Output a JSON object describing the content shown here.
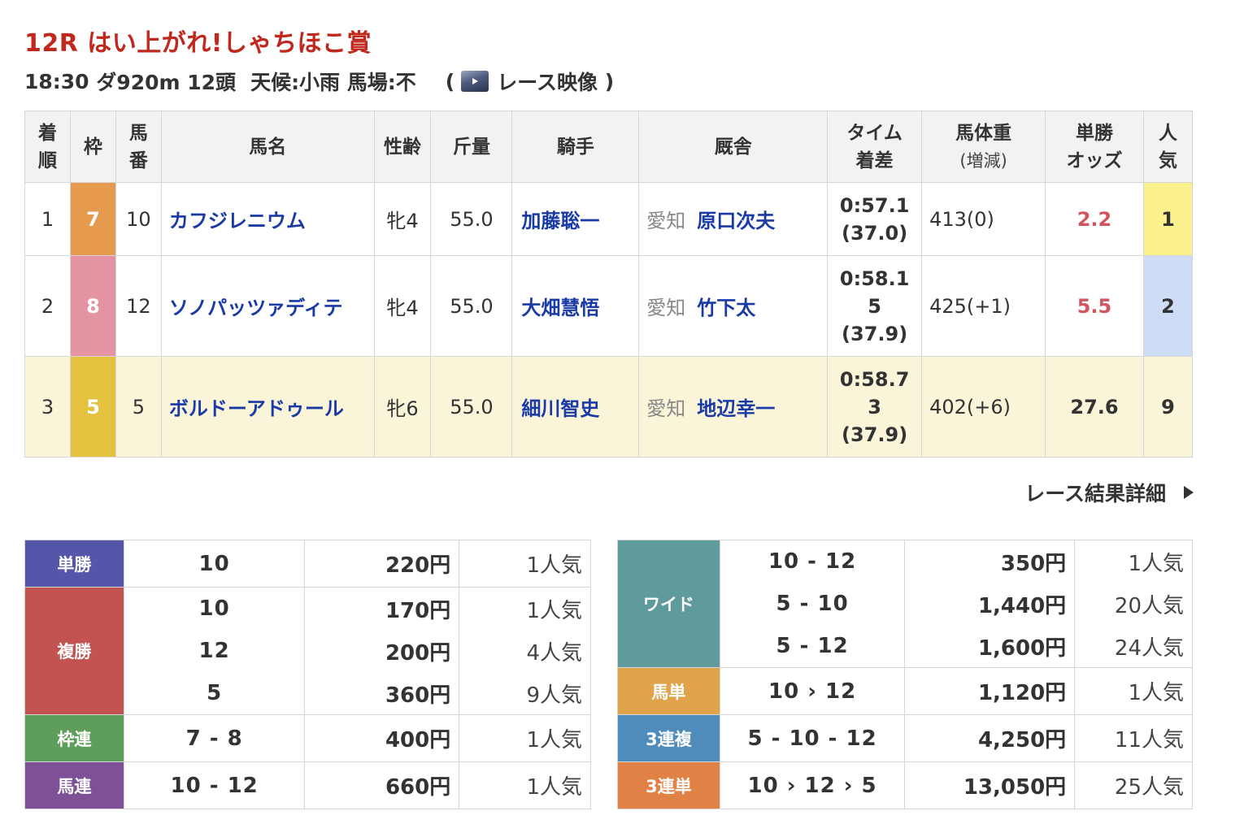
{
  "race": {
    "title": "12R はい上がれ!しゃちほこ賞",
    "time": "18:30",
    "course": "ダ920m",
    "runners": "12頭",
    "weather": "天候:小雨",
    "track": "馬場:不",
    "video_open": "(",
    "video_label": "レース映像",
    "video_close": ")"
  },
  "results_table": {
    "headers": {
      "rank": [
        "着",
        "順"
      ],
      "waku": "枠",
      "umaban": [
        "馬",
        "番"
      ],
      "name": "馬名",
      "sexage": "性齢",
      "weight_carried": "斤量",
      "jockey": "騎手",
      "trainer": "厩舎",
      "time": [
        "タイム",
        "着差"
      ],
      "body_weight": [
        "馬体重",
        "(増減)"
      ],
      "odds": [
        "単勝",
        "オッズ"
      ],
      "popularity": [
        "人",
        "気"
      ]
    },
    "rows": [
      {
        "rank": "1",
        "waku": "7",
        "umaban": "10",
        "name": "カフジレニウム",
        "sexage": "牝4",
        "weight_carried": "55.0",
        "jockey": "加藤聡一",
        "trainer_loc": "愛知",
        "trainer": "原口次夫",
        "time": [
          "0:57.1",
          "(37.0)"
        ],
        "body_weight": "413(0)",
        "odds": "2.2",
        "popularity": "1"
      },
      {
        "rank": "2",
        "waku": "8",
        "umaban": "12",
        "name": "ソノパッツァディテ",
        "sexage": "牝4",
        "weight_carried": "55.0",
        "jockey": "大畑慧悟",
        "trainer_loc": "愛知",
        "trainer": "竹下太",
        "time": [
          "0:58.1",
          "5",
          "(37.9)"
        ],
        "body_weight": "425(+1)",
        "odds": "5.5",
        "popularity": "2"
      },
      {
        "rank": "3",
        "waku": "5",
        "umaban": "5",
        "name": "ボルドーアドゥール",
        "sexage": "牝6",
        "weight_carried": "55.0",
        "jockey": "細川智史",
        "trainer_loc": "愛知",
        "trainer": "地辺幸一",
        "time": [
          "0:58.7",
          "3",
          "(37.9)"
        ],
        "body_weight": "402(+6)",
        "odds": "27.6",
        "popularity": "9"
      }
    ],
    "colors": {
      "waku_7": "#e59a4e",
      "waku_8": "#e493a3",
      "waku_5": "#e2c23f",
      "pop_1": "#fbf28e",
      "pop_2": "#cfdcf5",
      "highlight_row": "#faf5d9"
    }
  },
  "detail_link": "レース結果詳細",
  "payouts_left": [
    {
      "label": "単勝",
      "color": "#5556a9",
      "entries": [
        {
          "combo": "10",
          "amount": "220円",
          "pop": "1人気"
        }
      ]
    },
    {
      "label": "複勝",
      "color": "#c25350",
      "entries": [
        {
          "combo": "10",
          "amount": "170円",
          "pop": "1人気"
        },
        {
          "combo": "12",
          "amount": "200円",
          "pop": "4人気"
        },
        {
          "combo": "5",
          "amount": "360円",
          "pop": "9人気"
        }
      ]
    },
    {
      "label": "枠連",
      "color": "#5f9e5a",
      "entries": [
        {
          "combo": "7 - 8",
          "amount": "400円",
          "pop": "1人気"
        }
      ]
    },
    {
      "label": "馬連",
      "color": "#7e5197",
      "entries": [
        {
          "combo": "10 - 12",
          "amount": "660円",
          "pop": "1人気"
        }
      ]
    }
  ],
  "payouts_right": [
    {
      "label": "ワイド",
      "color": "#5f9a9c",
      "entries": [
        {
          "combo": "10 - 12",
          "amount": "350円",
          "pop": "1人気"
        },
        {
          "combo": "5 - 10",
          "amount": "1,440円",
          "pop": "20人気"
        },
        {
          "combo": "5 - 12",
          "amount": "1,600円",
          "pop": "24人気"
        }
      ]
    },
    {
      "label": "馬単",
      "color": "#e0a34a",
      "entries": [
        {
          "combo": "10 › 12",
          "amount": "1,120円",
          "pop": "1人気"
        }
      ]
    },
    {
      "label": "3連複",
      "color": "#4f8cbb",
      "entries": [
        {
          "combo": "5 - 10 - 12",
          "amount": "4,250円",
          "pop": "11人気"
        }
      ]
    },
    {
      "label": "3連単",
      "color": "#e08246",
      "entries": [
        {
          "combo": "10 › 12 › 5",
          "amount": "13,050円",
          "pop": "25人気"
        }
      ]
    }
  ]
}
